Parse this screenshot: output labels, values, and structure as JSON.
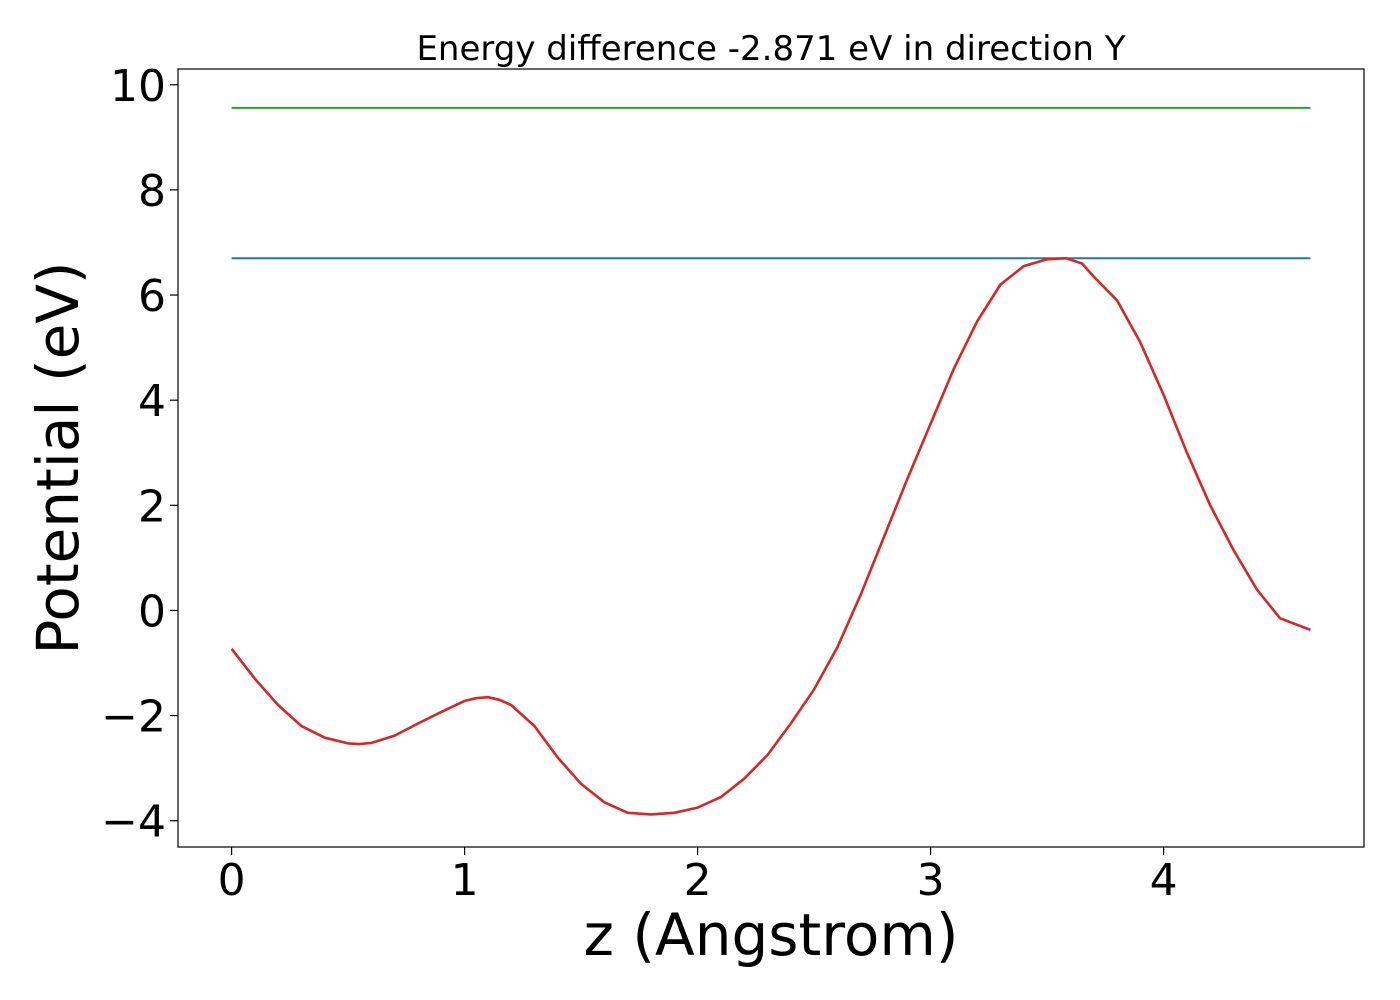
{
  "chart_data": {
    "type": "line",
    "title": "Energy difference -2.871 eV in direction Y",
    "xlabel": "z (Angstrom)",
    "ylabel": "Potential (eV)",
    "xlim": [
      -0.23,
      4.86
    ],
    "ylim": [
      -4.5,
      10.3
    ],
    "xticks": [
      0,
      1,
      2,
      3,
      4
    ],
    "xtick_labels": [
      "0",
      "1",
      "2",
      "3",
      "4"
    ],
    "yticks": [
      -4,
      -2,
      0,
      2,
      4,
      6,
      8,
      10
    ],
    "ytick_labels": [
      "−4",
      "−2",
      "0",
      "2",
      "4",
      "6",
      "8",
      "10"
    ],
    "grid": false,
    "series": [
      {
        "color": "#2ca02c",
        "x": [
          0,
          4.63
        ],
        "y": [
          9.56,
          9.56
        ]
      },
      {
        "color": "#1f77b4",
        "x": [
          0,
          4.63
        ],
        "y": [
          6.7,
          6.7
        ]
      },
      {
        "color": "#d62728",
        "x": [
          0,
          0.1,
          0.2,
          0.3,
          0.4,
          0.5,
          0.55,
          0.6,
          0.7,
          0.8,
          0.9,
          1.0,
          1.05,
          1.1,
          1.15,
          1.2,
          1.3,
          1.4,
          1.5,
          1.6,
          1.7,
          1.8,
          1.9,
          2.0,
          2.1,
          2.2,
          2.3,
          2.4,
          2.5,
          2.6,
          2.7,
          2.8,
          2.9,
          3.0,
          3.1,
          3.2,
          3.3,
          3.4,
          3.5,
          3.58,
          3.65,
          3.7,
          3.8,
          3.9,
          4.0,
          4.1,
          4.2,
          4.3,
          4.4,
          4.5,
          4.63
        ],
        "y": [
          -0.73,
          -1.3,
          -1.8,
          -2.2,
          -2.42,
          -2.53,
          -2.54,
          -2.52,
          -2.38,
          -2.15,
          -1.93,
          -1.72,
          -1.67,
          -1.65,
          -1.7,
          -1.8,
          -2.2,
          -2.8,
          -3.3,
          -3.65,
          -3.85,
          -3.88,
          -3.85,
          -3.75,
          -3.55,
          -3.2,
          -2.75,
          -2.15,
          -1.5,
          -0.7,
          0.3,
          1.4,
          2.5,
          3.55,
          4.6,
          5.5,
          6.2,
          6.55,
          6.68,
          6.7,
          6.6,
          6.35,
          5.9,
          5.1,
          4.1,
          3.0,
          2.0,
          1.15,
          0.4,
          -0.15,
          -0.37
        ]
      }
    ]
  }
}
